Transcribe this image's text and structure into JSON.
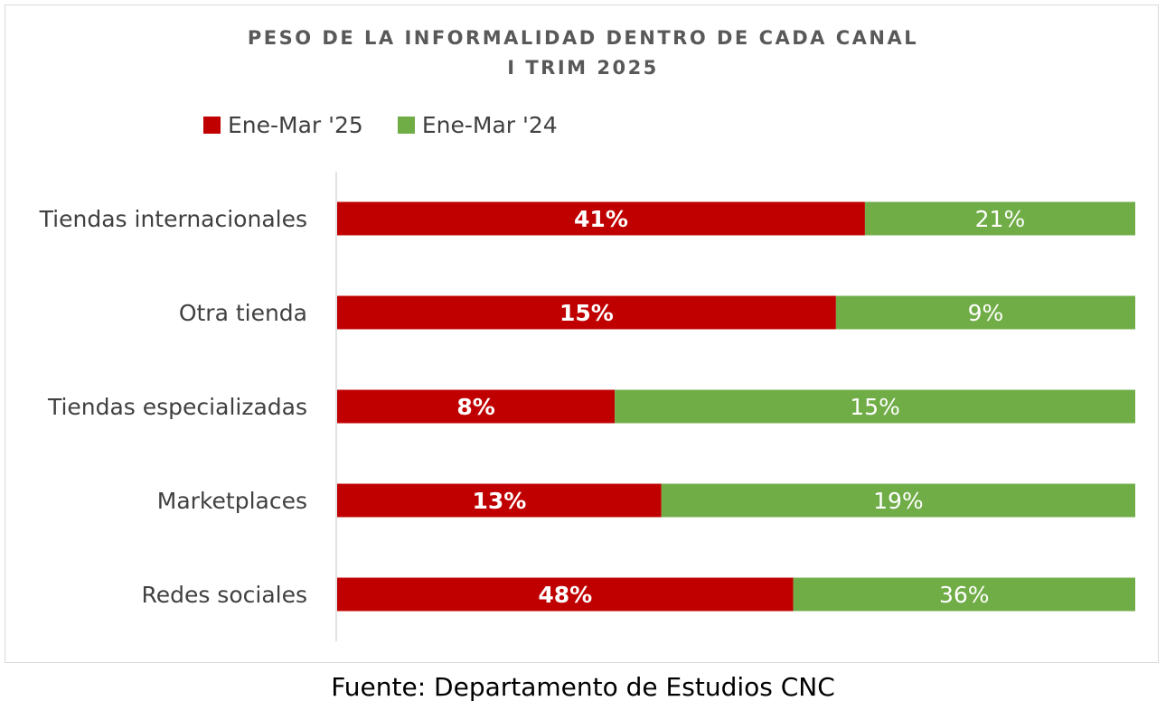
{
  "chart_data": {
    "type": "bar",
    "orientation": "horizontal",
    "stacked": "100%",
    "title_lines": [
      "PESO DE LA INFORMALIDAD DENTRO DE CADA CANAL",
      "I TRIM 2025"
    ],
    "categories": [
      "Tiendas internacionales",
      "Otra tienda",
      "Tiendas especializadas",
      "Marketplaces",
      "Redes sociales"
    ],
    "series": [
      {
        "name": "Ene-Mar '25",
        "color": "#c00000",
        "values": [
          41,
          15,
          8,
          13,
          48
        ],
        "labels": [
          "41%",
          "15%",
          "8%",
          "13%",
          "48%"
        ],
        "label_bold": true
      },
      {
        "name": "Ene-Mar '24",
        "color": "#70ad47",
        "values": [
          21,
          9,
          15,
          19,
          36
        ],
        "labels": [
          "21%",
          "9%",
          "15%",
          "19%",
          "36%"
        ],
        "label_bold": false
      }
    ],
    "legend_position": "top-left",
    "grid": false
  },
  "source": "Fuente: Departamento de Estudios CNC"
}
